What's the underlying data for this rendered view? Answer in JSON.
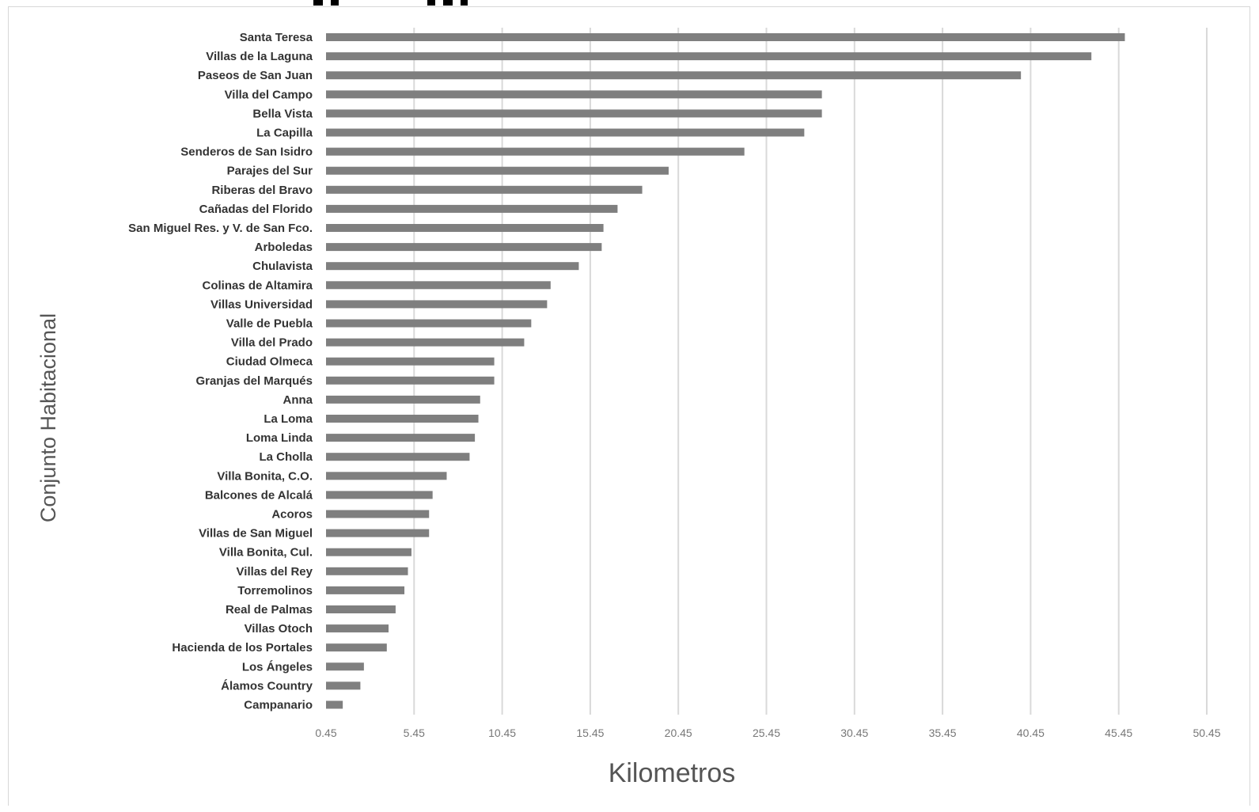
{
  "chart_data": {
    "type": "bar",
    "orientation": "horizontal",
    "title": "",
    "xlabel": "Kilometros",
    "ylabel": "Conjunto Habitacional",
    "xlim": [
      0.45,
      50.45
    ],
    "xticks": [
      "0.45",
      "5.45",
      "10.45",
      "15.45",
      "20.45",
      "25.45",
      "30.45",
      "35.45",
      "40.45",
      "45.45",
      "50.45"
    ],
    "grid": "vertical",
    "bar_color": "#7f7f7f",
    "grid_color": "#d9d9d9",
    "categories": [
      "Santa Teresa",
      "Villas de la Laguna",
      "Paseos de San Juan",
      "Villa del Campo",
      "Bella Vista",
      "La Capilla",
      "Senderos de San Isidro",
      "Parajes del Sur",
      "Riberas del Bravo",
      "Cañadas del Florido",
      "San Miguel Res. y V. de San Fco.",
      "Arboledas",
      "Chulavista",
      "Colinas de Altamira",
      "Villas Universidad",
      "Valle de Puebla",
      "Villa del Prado",
      "Ciudad Olmeca",
      "Granjas del Marqués",
      "Anna",
      "La Loma",
      "Loma Linda",
      "La Cholla",
      "Villa Bonita, C.O.",
      "Balcones de Alcalá",
      "Acoros",
      "Villas de San Miguel",
      "Villa Bonita, Cul.",
      "Villas del Rey",
      "Torremolinos",
      "Real de Palmas",
      "Villas Otoch",
      "Hacienda de los Portales",
      "Los Ángeles",
      "Álamos Country",
      "Campanario"
    ],
    "values": [
      45.8,
      43.9,
      39.9,
      28.6,
      28.6,
      27.6,
      24.2,
      19.9,
      18.4,
      17.0,
      16.2,
      16.1,
      14.8,
      13.2,
      13.0,
      12.1,
      11.7,
      10.0,
      10.0,
      9.2,
      9.1,
      8.9,
      8.6,
      7.3,
      6.5,
      6.3,
      6.3,
      5.3,
      5.1,
      4.9,
      4.4,
      4.0,
      3.9,
      2.6,
      2.4,
      1.4
    ]
  }
}
